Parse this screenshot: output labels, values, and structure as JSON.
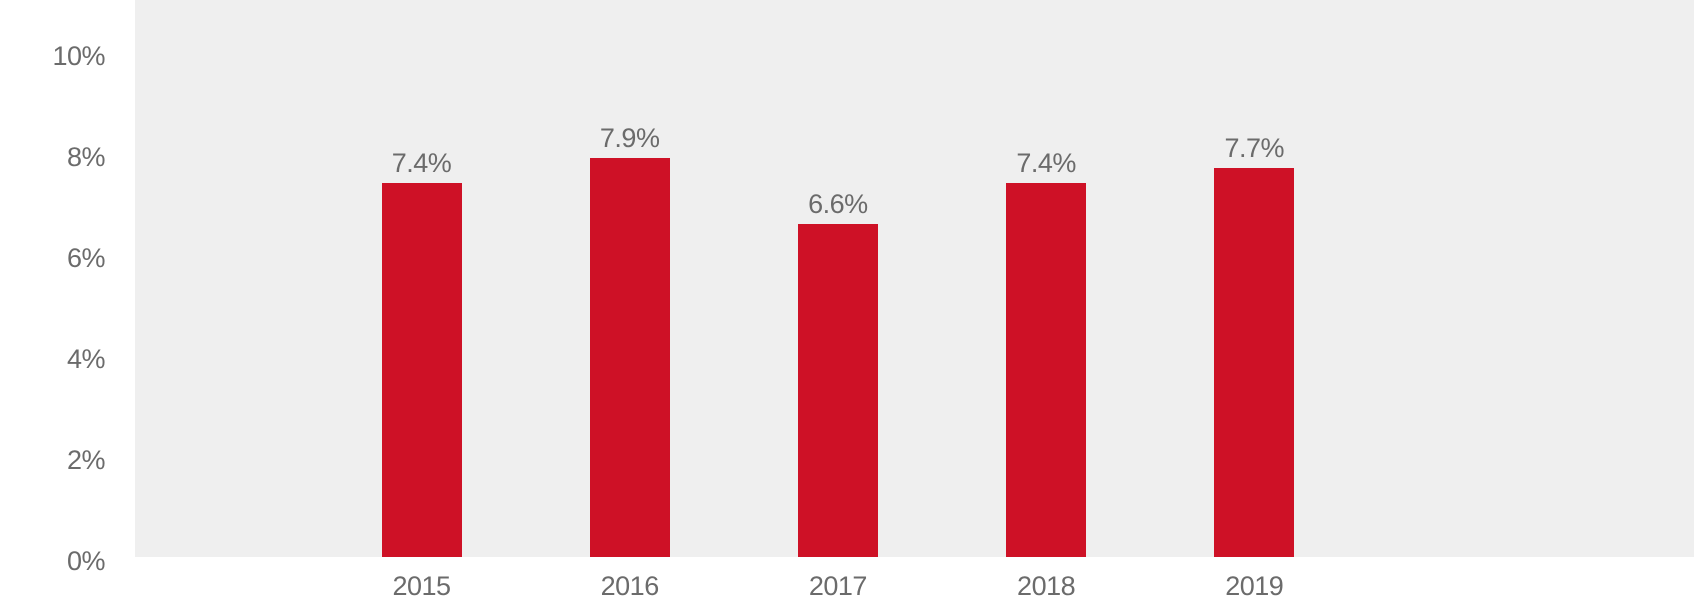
{
  "chart_data": {
    "type": "bar",
    "categories": [
      "2015",
      "2016",
      "2017",
      "2018",
      "2019"
    ],
    "values": [
      7.4,
      7.9,
      6.6,
      7.4,
      7.7
    ],
    "value_labels": [
      "7.4%",
      "7.9%",
      "6.6%",
      "7.4%",
      "7.7%"
    ],
    "y_ticks": [
      {
        "value": 0,
        "label": "0%"
      },
      {
        "value": 2,
        "label": "2%"
      },
      {
        "value": 4,
        "label": "4%"
      },
      {
        "value": 6,
        "label": "6%"
      },
      {
        "value": 8,
        "label": "8%"
      },
      {
        "value": 10,
        "label": "10%"
      }
    ],
    "title": "",
    "xlabel": "",
    "ylabel": "",
    "ylim": [
      0,
      11
    ],
    "grid": false,
    "legend": "none",
    "colors": {
      "bar": "#CE1126",
      "plot_background": "#EFEFEF",
      "page_background": "#FFFFFF",
      "label_text": "#6B6B6B"
    }
  }
}
